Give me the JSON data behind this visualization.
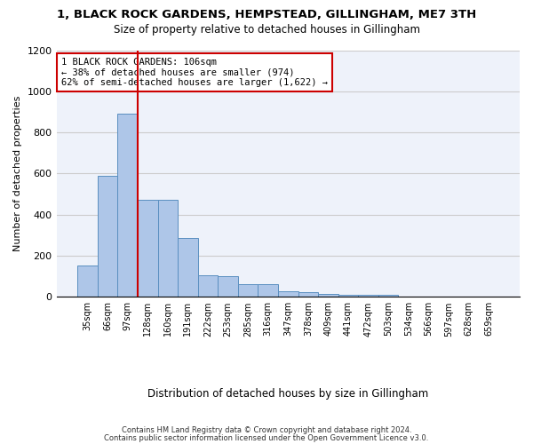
{
  "title": "1, BLACK ROCK GARDENS, HEMPSTEAD, GILLINGHAM, ME7 3TH",
  "subtitle": "Size of property relative to detached houses in Gillingham",
  "xlabel": "Distribution of detached houses by size in Gillingham",
  "ylabel": "Number of detached properties",
  "bar_values": [
    152,
    590,
    890,
    472,
    470,
    285,
    105,
    100,
    62,
    60,
    28,
    22,
    15,
    12,
    10,
    10,
    0,
    0,
    0,
    0,
    0
  ],
  "bin_labels": [
    "35sqm",
    "66sqm",
    "97sqm",
    "128sqm",
    "160sqm",
    "191sqm",
    "222sqm",
    "253sqm",
    "285sqm",
    "316sqm",
    "347sqm",
    "378sqm",
    "409sqm",
    "441sqm",
    "472sqm",
    "503sqm",
    "534sqm",
    "566sqm",
    "597sqm",
    "628sqm",
    "659sqm"
  ],
  "bar_color": "#aec6e8",
  "bar_edge_color": "#5a8fc0",
  "grid_color": "#cccccc",
  "vline_x_index": 2,
  "vline_color": "#cc0000",
  "annotation_text": "1 BLACK ROCK GARDENS: 106sqm\n← 38% of detached houses are smaller (974)\n62% of semi-detached houses are larger (1,622) →",
  "annotation_box_color": "#ffffff",
  "annotation_box_edge": "#cc0000",
  "ylim": [
    0,
    1200
  ],
  "yticks": [
    0,
    200,
    400,
    600,
    800,
    1000,
    1200
  ],
  "footer1": "Contains HM Land Registry data © Crown copyright and database right 2024.",
  "footer2": "Contains public sector information licensed under the Open Government Licence v3.0.",
  "bg_color": "#eef2fa"
}
